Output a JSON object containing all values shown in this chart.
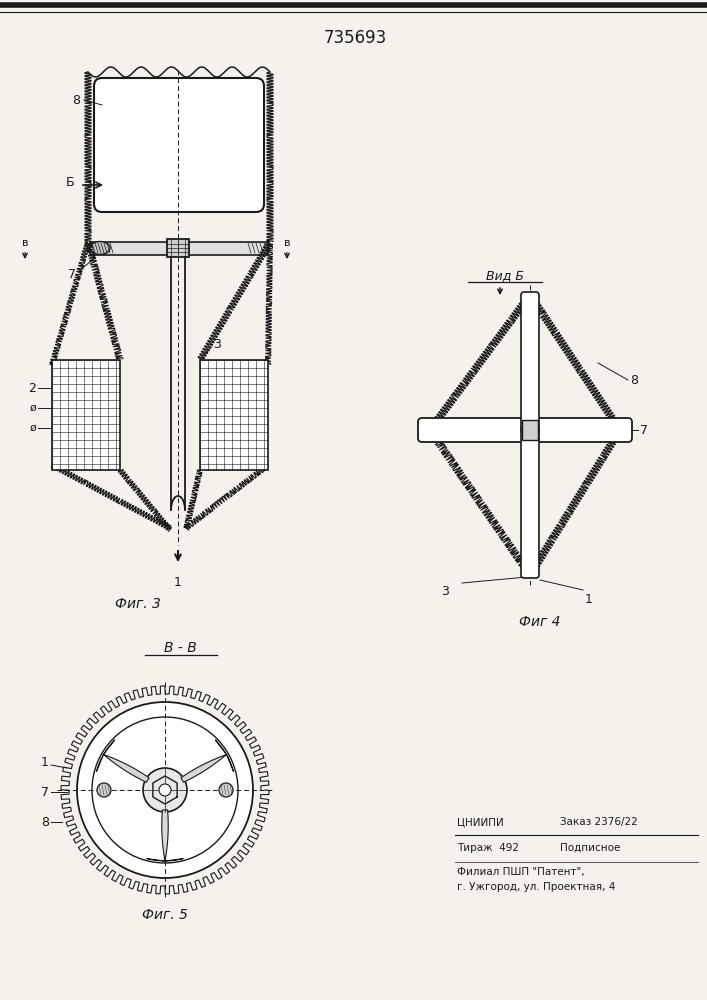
{
  "title": "735693",
  "bg_color": "#f5f2ec",
  "line_color": "#1a1a1a",
  "fig3_label": "Фиг. 3",
  "fig4_label": "Фиг 4",
  "fig5_label": "Фиг. 5",
  "view_b_label": "В - В",
  "view_vid_b": "Вид Б",
  "label_1": "1",
  "label_2": "2",
  "label_3": "3",
  "label_7": "7",
  "label_8": "8",
  "phi1": "ø",
  "phi2": "ø"
}
